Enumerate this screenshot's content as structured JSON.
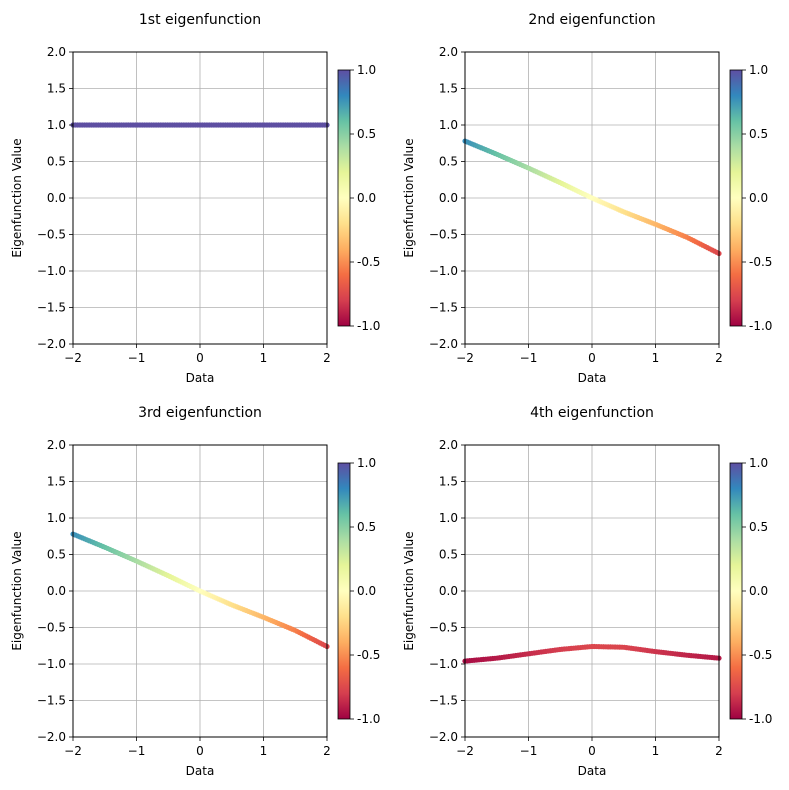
{
  "chart_data": [
    {
      "type": "scatter",
      "title": "1st eigenfunction",
      "xlabel": "Data",
      "ylabel": "Eigenfunction Value",
      "xlim": [
        -2,
        2
      ],
      "ylim": [
        -2,
        2
      ],
      "xticks": [
        "−2",
        "−1",
        "0",
        "1",
        "2"
      ],
      "yticks": [
        "2.0",
        "1.5",
        "1.0",
        "0.5",
        "0.0",
        "−0.5",
        "−1.0",
        "−1.5",
        "−2.0"
      ],
      "grid": true,
      "colormap": "Spectral",
      "colorbar_ticks": [
        "1.0",
        "0.5",
        "0.0",
        "-0.5",
        "-1.0"
      ],
      "x": [
        -2.0,
        -1.5,
        -1.0,
        -0.5,
        0.0,
        0.5,
        1.0,
        1.5,
        2.0
      ],
      "y": [
        1.0,
        1.0,
        1.0,
        1.0,
        1.0,
        1.0,
        1.0,
        1.0,
        1.0
      ]
    },
    {
      "type": "scatter",
      "title": "2nd eigenfunction",
      "xlabel": "Data",
      "ylabel": "Eigenfunction Value",
      "xlim": [
        -2,
        2
      ],
      "ylim": [
        -2,
        2
      ],
      "xticks": [
        "−2",
        "−1",
        "0",
        "1",
        "2"
      ],
      "yticks": [
        "2.0",
        "1.5",
        "1.0",
        "0.5",
        "0.0",
        "−0.5",
        "−1.0",
        "−1.5",
        "−2.0"
      ],
      "grid": true,
      "colormap": "Spectral",
      "colorbar_ticks": [
        "1.0",
        "0.5",
        "0.0",
        "-0.5",
        "-1.0"
      ],
      "x": [
        -2.0,
        -1.5,
        -1.0,
        -0.5,
        0.0,
        0.5,
        1.0,
        1.5,
        2.0
      ],
      "y": [
        0.78,
        0.6,
        0.41,
        0.21,
        0.0,
        -0.19,
        -0.36,
        -0.54,
        -0.76
      ]
    },
    {
      "type": "scatter",
      "title": "3rd eigenfunction",
      "xlabel": "Data",
      "ylabel": "Eigenfunction Value",
      "xlim": [
        -2,
        2
      ],
      "ylim": [
        -2,
        2
      ],
      "xticks": [
        "−2",
        "−1",
        "0",
        "1",
        "2"
      ],
      "yticks": [
        "2.0",
        "1.5",
        "1.0",
        "0.5",
        "0.0",
        "−0.5",
        "−1.0",
        "−1.5",
        "−2.0"
      ],
      "grid": true,
      "colormap": "Spectral",
      "colorbar_ticks": [
        "1.0",
        "0.5",
        "0.0",
        "-0.5",
        "-1.0"
      ],
      "x": [
        -2.0,
        -1.5,
        -1.0,
        -0.5,
        0.0,
        0.5,
        1.0,
        1.5,
        2.0
      ],
      "y": [
        0.78,
        0.6,
        0.41,
        0.21,
        0.0,
        -0.19,
        -0.36,
        -0.54,
        -0.76
      ]
    },
    {
      "type": "scatter",
      "title": "4th eigenfunction",
      "xlabel": "Data",
      "ylabel": "Eigenfunction Value",
      "xlim": [
        -2,
        2
      ],
      "ylim": [
        -2,
        2
      ],
      "xticks": [
        "−2",
        "−1",
        "0",
        "1",
        "2"
      ],
      "yticks": [
        "2.0",
        "1.5",
        "1.0",
        "0.5",
        "0.0",
        "−0.5",
        "−1.0",
        "−1.5",
        "−2.0"
      ],
      "grid": true,
      "colormap": "Spectral",
      "colorbar_ticks": [
        "1.0",
        "0.5",
        "0.0",
        "-0.5",
        "-1.0"
      ],
      "x": [
        -2.0,
        -1.5,
        -1.0,
        -0.5,
        0.0,
        0.5,
        1.0,
        1.5,
        2.0
      ],
      "y": [
        -0.96,
        -0.92,
        -0.86,
        -0.8,
        -0.76,
        -0.77,
        -0.83,
        -0.88,
        -0.92
      ]
    }
  ],
  "colors": {
    "grid": "#b0b0b0",
    "spectral": [
      "#9e0142",
      "#d53e4f",
      "#f46d43",
      "#fdae61",
      "#fee08b",
      "#ffffbf",
      "#e6f598",
      "#abdda4",
      "#66c2a5",
      "#3288bd",
      "#5e4fa2"
    ]
  }
}
